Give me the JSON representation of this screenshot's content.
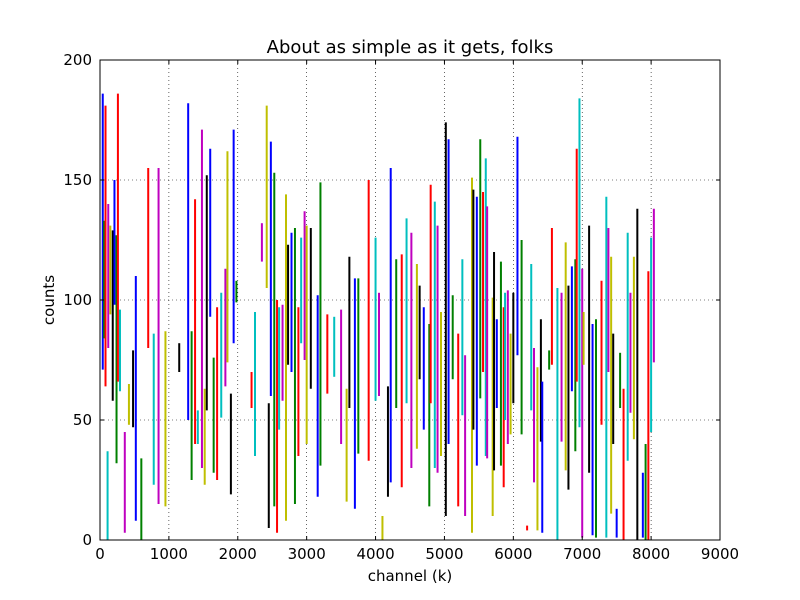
{
  "chart_data": {
    "type": "vlines",
    "title": "About as simple as it gets, folks",
    "xlabel": "channel (k)",
    "ylabel": "counts",
    "xlim": [
      0,
      9000
    ],
    "ylim": [
      0,
      200
    ],
    "xticks": [
      "0",
      "1000",
      "2000",
      "3000",
      "4000",
      "5000",
      "6000",
      "7000",
      "8000",
      "9000"
    ],
    "yticks": [
      "0",
      "50",
      "100",
      "150",
      "200"
    ],
    "grid": true,
    "color_cycle": [
      "#0000ff",
      "#008000",
      "#ff0000",
      "#00bfbf",
      "#bf00bf",
      "#bfbf00",
      "#000000"
    ],
    "segments": [
      [
        40,
        71,
        186
      ],
      [
        60,
        84,
        133
      ],
      [
        80,
        64,
        181
      ],
      [
        110,
        0,
        37
      ],
      [
        120,
        80,
        140
      ],
      [
        150,
        94,
        131
      ],
      [
        185,
        58,
        129
      ],
      [
        210,
        98,
        150
      ],
      [
        240,
        32,
        127
      ],
      [
        260,
        66,
        186
      ],
      [
        290,
        62,
        96
      ],
      [
        360,
        3,
        45
      ],
      [
        420,
        48,
        65
      ],
      [
        480,
        47,
        79
      ],
      [
        520,
        8,
        110
      ],
      [
        600,
        0,
        34
      ],
      [
        700,
        80,
        155
      ],
      [
        780,
        23,
        86
      ],
      [
        850,
        15,
        155
      ],
      [
        950,
        14,
        87
      ],
      [
        1150,
        70,
        82
      ],
      [
        1280,
        50,
        182
      ],
      [
        1330,
        25,
        87
      ],
      [
        1380,
        40,
        142
      ],
      [
        1420,
        40,
        54
      ],
      [
        1480,
        30,
        171
      ],
      [
        1520,
        23,
        63
      ],
      [
        1550,
        54,
        152
      ],
      [
        1600,
        93,
        163
      ],
      [
        1650,
        28,
        76
      ],
      [
        1700,
        25,
        97
      ],
      [
        1760,
        51,
        103
      ],
      [
        1820,
        64,
        113
      ],
      [
        1850,
        74,
        162
      ],
      [
        1900,
        19,
        61
      ],
      [
        1940,
        82,
        171
      ],
      [
        1980,
        99,
        108
      ],
      [
        2200,
        55,
        70
      ],
      [
        2250,
        35,
        95
      ],
      [
        2350,
        116,
        132
      ],
      [
        2420,
        105,
        181
      ],
      [
        2450,
        5,
        57
      ],
      [
        2480,
        60,
        166
      ],
      [
        2530,
        14,
        153
      ],
      [
        2570,
        3,
        100
      ],
      [
        2600,
        46,
        97
      ],
      [
        2650,
        58,
        98
      ],
      [
        2700,
        8,
        144
      ],
      [
        2730,
        73,
        123
      ],
      [
        2780,
        70,
        128
      ],
      [
        2830,
        15,
        130
      ],
      [
        2880,
        35,
        97
      ],
      [
        2920,
        82,
        126
      ],
      [
        2970,
        75,
        137
      ],
      [
        3000,
        40,
        131
      ],
      [
        3060,
        63,
        130
      ],
      [
        3160,
        18,
        102
      ],
      [
        3200,
        31,
        149
      ],
      [
        3300,
        61,
        94
      ],
      [
        3400,
        68,
        93
      ],
      [
        3500,
        40,
        96
      ],
      [
        3580,
        16,
        63
      ],
      [
        3620,
        55,
        118
      ],
      [
        3700,
        13,
        109
      ],
      [
        3750,
        36,
        109
      ],
      [
        3900,
        33,
        150
      ],
      [
        4000,
        58,
        126
      ],
      [
        4050,
        60,
        103
      ],
      [
        4100,
        0,
        10
      ],
      [
        4180,
        18,
        64
      ],
      [
        4220,
        24,
        155
      ],
      [
        4300,
        55,
        117
      ],
      [
        4380,
        22,
        119
      ],
      [
        4450,
        57,
        134
      ],
      [
        4520,
        30,
        128
      ],
      [
        4600,
        38,
        115
      ],
      [
        4640,
        67,
        106
      ],
      [
        4700,
        46,
        97
      ],
      [
        4780,
        14,
        90
      ],
      [
        4800,
        57,
        148
      ],
      [
        4860,
        30,
        141
      ],
      [
        4900,
        28,
        131
      ],
      [
        4950,
        35,
        95
      ],
      [
        5020,
        10,
        174
      ],
      [
        5060,
        40,
        167
      ],
      [
        5120,
        67,
        102
      ],
      [
        5200,
        14,
        86
      ],
      [
        5260,
        52,
        117
      ],
      [
        5300,
        10,
        77
      ],
      [
        5400,
        3,
        151
      ],
      [
        5420,
        46,
        146
      ],
      [
        5470,
        31,
        143
      ],
      [
        5520,
        59,
        167
      ],
      [
        5560,
        70,
        145
      ],
      [
        5600,
        35,
        159
      ],
      [
        5620,
        34,
        139
      ],
      [
        5700,
        10,
        101
      ],
      [
        5720,
        29,
        120
      ],
      [
        5760,
        55,
        92
      ],
      [
        5820,
        31,
        116
      ],
      [
        5860,
        22,
        97
      ],
      [
        5880,
        50,
        103
      ],
      [
        5920,
        40,
        104
      ],
      [
        5960,
        44,
        86
      ],
      [
        6000,
        57,
        103
      ],
      [
        6060,
        77,
        168
      ],
      [
        6120,
        44,
        125
      ],
      [
        6200,
        4,
        6
      ],
      [
        6260,
        54,
        115
      ],
      [
        6300,
        24,
        80
      ],
      [
        6350,
        4,
        72
      ],
      [
        6400,
        41,
        92
      ],
      [
        6420,
        3,
        66
      ],
      [
        6520,
        71,
        79
      ],
      [
        6560,
        73,
        130
      ],
      [
        6640,
        0,
        105
      ],
      [
        6700,
        41,
        103
      ],
      [
        6760,
        29,
        124
      ],
      [
        6800,
        21,
        106
      ],
      [
        6850,
        62,
        114
      ],
      [
        6900,
        37,
        117
      ],
      [
        6920,
        66,
        163
      ],
      [
        6960,
        47,
        184
      ],
      [
        7000,
        1,
        113
      ],
      [
        7020,
        73,
        95
      ],
      [
        7100,
        28,
        131
      ],
      [
        7150,
        2,
        90
      ],
      [
        7200,
        1,
        92
      ],
      [
        7280,
        48,
        108
      ],
      [
        7350,
        1,
        143
      ],
      [
        7380,
        70,
        130
      ],
      [
        7420,
        11,
        118
      ],
      [
        7450,
        40,
        86
      ],
      [
        7500,
        1,
        13
      ],
      [
        7550,
        55,
        78
      ],
      [
        7600,
        0,
        63
      ],
      [
        7660,
        33,
        128
      ],
      [
        7700,
        53,
        103
      ],
      [
        7750,
        42,
        118
      ],
      [
        7800,
        0,
        138
      ],
      [
        7880,
        1,
        28
      ],
      [
        7920,
        0,
        40
      ],
      [
        7960,
        0,
        112
      ],
      [
        8000,
        45,
        126
      ],
      [
        8040,
        74,
        138
      ]
    ]
  }
}
